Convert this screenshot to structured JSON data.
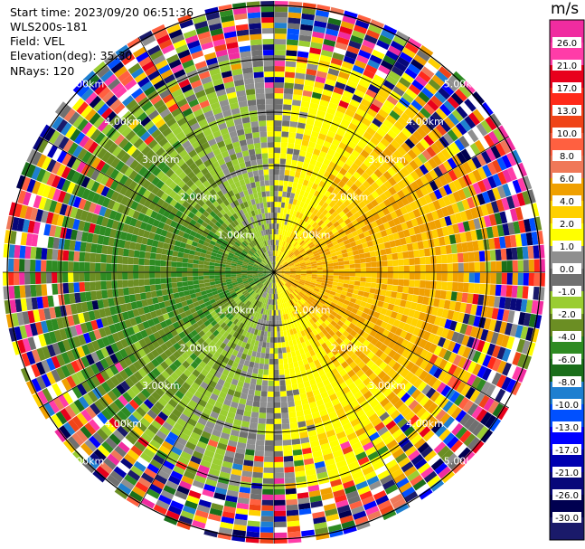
{
  "header": {
    "start_label": "Start time:",
    "start_value": "2023/09/20 06:51:36",
    "device": "WLS200s-181",
    "field_label": "Field:",
    "field_value": "VEL",
    "elev_label": "Elevation(deg):",
    "elev_value": "35.30",
    "nrays_label": "NRays:",
    "nrays_value": "120"
  },
  "colorbar": {
    "unit": "m/s",
    "colors": [
      "#f02ca0",
      "#ff3ca8",
      "#e8001c",
      "#ff2a1a",
      "#f04418",
      "#ff6040",
      "#f07858",
      "#f0a000",
      "#ffd000",
      "#ffff00",
      "#8f8f8f",
      "#707070",
      "#9acd32",
      "#6b8e23",
      "#2e8b22",
      "#1a6e1a",
      "#1e7fd0",
      "#0050ff",
      "#0000ff",
      "#0000b0",
      "#08087a",
      "#000050",
      "#1a1a6a"
    ],
    "labels": [
      "26.0",
      "21.0",
      "17.0",
      "13.0",
      "10.0",
      "8.0",
      "6.0",
      "4.0",
      "2.0",
      "1.0",
      "0.0",
      "-1.0",
      "-2.0",
      "-4.0",
      "-6.0",
      "-8.0",
      "-10.0",
      "-13.0",
      "-17.0",
      "-21.0",
      "-26.0",
      "-30.0"
    ]
  },
  "chart_data": {
    "type": "ppi",
    "field": "VEL",
    "units": "m/s",
    "n_rays": 120,
    "elevation_deg": 35.3,
    "range_ring_labels_km": [
      "1.00km",
      "2.00km",
      "3.00km",
      "4.00km",
      "5.00km"
    ],
    "range_rings_km": [
      1.0,
      2.0,
      3.0,
      4.0,
      5.0
    ],
    "approx_velocity_pattern": [
      {
        "region": "west / southwest near field",
        "velocity_range": [
          -6.0,
          -2.0
        ]
      },
      {
        "region": "east near field",
        "velocity_range": [
          2.0,
          6.0
        ]
      },
      {
        "region": "beyond ~4 km",
        "velocity_range": [
          -30.0,
          26.0
        ],
        "note": "noise"
      }
    ]
  }
}
